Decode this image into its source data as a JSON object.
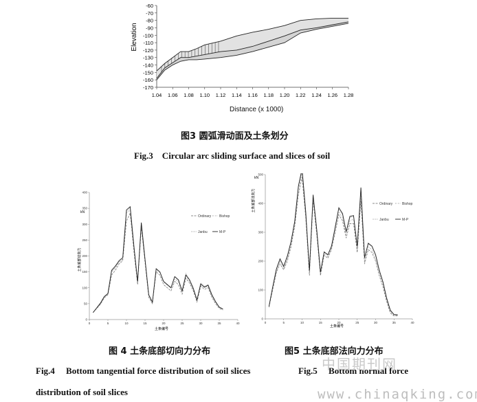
{
  "fig3": {
    "caption_cn": "图3 圆弧滑动面及土条划分",
    "caption_en": "Fig.3    Circular arc sliding surface and slices of soil",
    "ylabel": "Elevation",
    "xlabel": "Distance (x  1000)",
    "yticks": [
      "-60",
      "-70",
      "-80",
      "-90",
      "-100",
      "-110",
      "-120",
      "-130",
      "-140",
      "-150",
      "-160",
      "-170"
    ],
    "xticks": [
      "1.04",
      "1.06",
      "1.08",
      "1.10",
      "1.12",
      "1.14",
      "1.16",
      "1.18",
      "1.20",
      "1.22",
      "1.24",
      "1.26",
      "1.28"
    ]
  },
  "fig4": {
    "caption_cn": "图 4 土条底部切向力分布",
    "caption_en": "Fig.4     Bottom tangential force distribution of soil slices",
    "caption_en_cont": "distribution of soil slices",
    "ylabel": "土条底部切向力",
    "unit": "kN",
    "xlabel": "土条编号",
    "yticks": [
      "0",
      "50",
      "100",
      "150",
      "200",
      "250",
      "300",
      "350",
      "400"
    ],
    "xticks": [
      "0",
      "5",
      "10",
      "15",
      "20",
      "25",
      "30",
      "35",
      "40"
    ],
    "legend": [
      "Ordinary",
      "Bishop",
      "Janbu",
      "M-P"
    ]
  },
  "fig5": {
    "caption_cn": "图5 土条底部法向力分布",
    "caption_en": "Fig.5     Bottom normal force",
    "ylabel": "土条底部法向力",
    "unit": "kN",
    "xlabel": "土条编号",
    "yticks": [
      "0",
      "100",
      "200",
      "300",
      "400",
      "500"
    ],
    "xticks": [
      "0",
      "5",
      "10",
      "15",
      "20",
      "25",
      "30",
      "35",
      "40"
    ],
    "legend": [
      "Ordinary",
      "Bishop",
      "Janbu",
      "M-P"
    ]
  },
  "watermark": {
    "line1": "中国期刊网",
    "line2": "www.chinaqking.com"
  },
  "chart_data": [
    {
      "type": "area",
      "x": [
        1.04,
        1.05,
        1.06,
        1.07,
        1.08,
        1.09,
        1.1,
        1.12,
        1.14,
        1.16,
        1.18,
        1.2,
        1.22,
        1.24,
        1.26,
        1.28
      ],
      "series": [
        {
          "values": [
            -148,
            -138,
            -130,
            -122,
            -122,
            -118,
            -113,
            -108,
            -101,
            -96,
            -92,
            -87,
            -80,
            -78,
            -77,
            -77
          ]
        },
        {
          "values": [
            -158,
            -144,
            -137,
            -130,
            -130,
            -128,
            -126,
            -122,
            -120,
            -115,
            -108,
            -101,
            -93,
            -90,
            -86,
            -82
          ]
        },
        {
          "values": [
            -160,
            -147,
            -140,
            -135,
            -133,
            -133,
            -132,
            -130,
            -127,
            -122,
            -116,
            -110,
            -97,
            -92,
            -88,
            -84
          ]
        }
      ],
      "xlim": [
        1.04,
        1.28
      ],
      "ylim": [
        -170,
        -60
      ]
    },
    {
      "type": "line",
      "x": [
        1,
        2,
        3,
        4,
        5,
        6,
        7,
        8,
        9,
        10,
        11,
        12,
        13,
        14,
        15,
        16,
        17,
        18,
        19,
        20,
        21,
        22,
        23,
        24,
        25,
        26,
        27,
        28,
        29,
        30,
        31,
        32,
        33,
        34,
        35,
        36
      ],
      "series": [
        {
          "name": "Ordinary",
          "values": [
            22,
            35,
            48,
            68,
            78,
            140,
            155,
            175,
            185,
            310,
            335,
            215,
            110,
            290,
            180,
            70,
            50,
            150,
            140,
            110,
            100,
            90,
            120,
            110,
            80,
            130,
            115,
            90,
            55,
            105,
            95,
            100,
            70,
            50,
            35,
            30
          ]
        },
        {
          "name": "Bishop",
          "values": [
            22,
            36,
            50,
            70,
            80,
            150,
            162,
            180,
            190,
            335,
            345,
            225,
            115,
            295,
            185,
            75,
            52,
            155,
            148,
            118,
            108,
            98,
            128,
            118,
            88,
            138,
            120,
            95,
            60,
            110,
            100,
            105,
            75,
            55,
            38,
            32
          ]
        },
        {
          "name": "Janbu",
          "values": [
            22,
            36,
            50,
            72,
            82,
            152,
            165,
            182,
            192,
            340,
            352,
            230,
            118,
            300,
            190,
            78,
            54,
            158,
            150,
            120,
            110,
            100,
            135,
            122,
            92,
            145,
            125,
            100,
            62,
            115,
            105,
            110,
            80,
            58,
            40,
            33
          ]
        },
        {
          "name": "M-P",
          "values": [
            22,
            37,
            52,
            72,
            82,
            155,
            168,
            185,
            195,
            345,
            355,
            232,
            120,
            305,
            190,
            78,
            55,
            160,
            150,
            120,
            110,
            100,
            135,
            125,
            90,
            140,
            125,
            98,
            62,
            112,
            102,
            108,
            78,
            56,
            39,
            33
          ]
        }
      ],
      "xlim": [
        0,
        40
      ],
      "ylim": [
        0,
        400
      ]
    },
    {
      "type": "line",
      "x": [
        1,
        2,
        3,
        4,
        5,
        6,
        7,
        8,
        9,
        10,
        11,
        12,
        13,
        14,
        15,
        16,
        17,
        18,
        19,
        20,
        21,
        22,
        23,
        24,
        25,
        26,
        27,
        28,
        29,
        30,
        31,
        32,
        33,
        34,
        35,
        36
      ],
      "series": [
        {
          "name": "Ordinary",
          "values": [
            40,
            100,
            160,
            190,
            170,
            200,
            250,
            320,
            430,
            490,
            350,
            150,
            410,
            290,
            150,
            220,
            210,
            240,
            300,
            360,
            340,
            280,
            330,
            330,
            230,
            410,
            190,
            240,
            230,
            200,
            150,
            110,
            60,
            20,
            10,
            10
          ]
        },
        {
          "name": "Bishop",
          "values": [
            42,
            105,
            165,
            200,
            175,
            210,
            260,
            330,
            450,
            505,
            360,
            160,
            420,
            300,
            155,
            225,
            215,
            245,
            310,
            370,
            350,
            290,
            340,
            345,
            240,
            430,
            200,
            250,
            240,
            210,
            160,
            120,
            65,
            25,
            12,
            12
          ]
        },
        {
          "name": "Janbu",
          "values": [
            43,
            108,
            170,
            205,
            180,
            215,
            265,
            335,
            455,
            510,
            365,
            165,
            425,
            305,
            160,
            230,
            220,
            250,
            315,
            380,
            360,
            300,
            350,
            355,
            250,
            440,
            210,
            260,
            250,
            220,
            165,
            125,
            70,
            28,
            14,
            13
          ]
        },
        {
          "name": "M-P",
          "values": [
            43,
            110,
            172,
            208,
            182,
            218,
            268,
            338,
            460,
            520,
            370,
            168,
            430,
            308,
            162,
            232,
            222,
            252,
            318,
            385,
            365,
            302,
            355,
            358,
            252,
            455,
            212,
            262,
            252,
            222,
            168,
            128,
            72,
            30,
            15,
            14
          ]
        }
      ],
      "xlim": [
        0,
        40
      ],
      "ylim": [
        0,
        500
      ]
    }
  ]
}
